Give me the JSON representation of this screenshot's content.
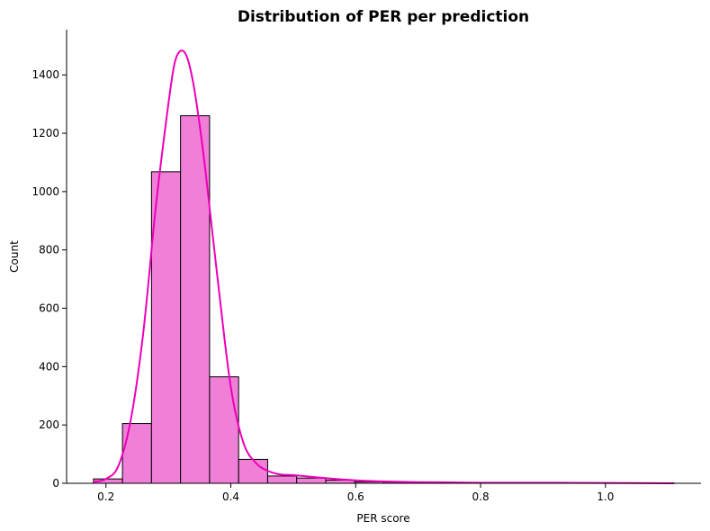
{
  "chart_data": {
    "type": "bar",
    "title": "Distribution of PER per prediction",
    "xlabel": "PER score",
    "ylabel": "Count",
    "xlim": [
      0.137,
      1.153
    ],
    "ylim": [
      0,
      1555
    ],
    "x_ticks": [
      "0.2",
      "0.4",
      "0.6",
      "0.8",
      "1.0"
    ],
    "y_ticks": [
      "0",
      "200",
      "400",
      "600",
      "800",
      "1000",
      "1200",
      "1400"
    ],
    "bins": {
      "start": 0.18,
      "width": 0.0465,
      "counts": [
        15,
        205,
        1068,
        1260,
        365,
        82,
        25,
        18,
        11,
        5,
        4,
        3,
        3,
        2,
        2,
        1,
        1,
        1,
        1,
        1
      ]
    },
    "kde": {
      "x": [
        0.18,
        0.2,
        0.22,
        0.24,
        0.26,
        0.28,
        0.3,
        0.31,
        0.32,
        0.33,
        0.34,
        0.35,
        0.36,
        0.38,
        0.4,
        0.42,
        0.44,
        0.46,
        0.48,
        0.5,
        0.55,
        0.6,
        0.65,
        0.7,
        0.75,
        0.8,
        0.9,
        1.0,
        1.11
      ],
      "y": [
        5,
        15,
        60,
        220,
        520,
        950,
        1300,
        1440,
        1483,
        1460,
        1370,
        1230,
        1060,
        680,
        330,
        140,
        70,
        42,
        30,
        28,
        18,
        10,
        6,
        4,
        3,
        2,
        2,
        1,
        0
      ]
    },
    "colors": {
      "bar_fill": "#f07fd8",
      "bar_edge": "#000000",
      "kde_line": "#ec00b8"
    },
    "grid": false,
    "legend": "none"
  }
}
